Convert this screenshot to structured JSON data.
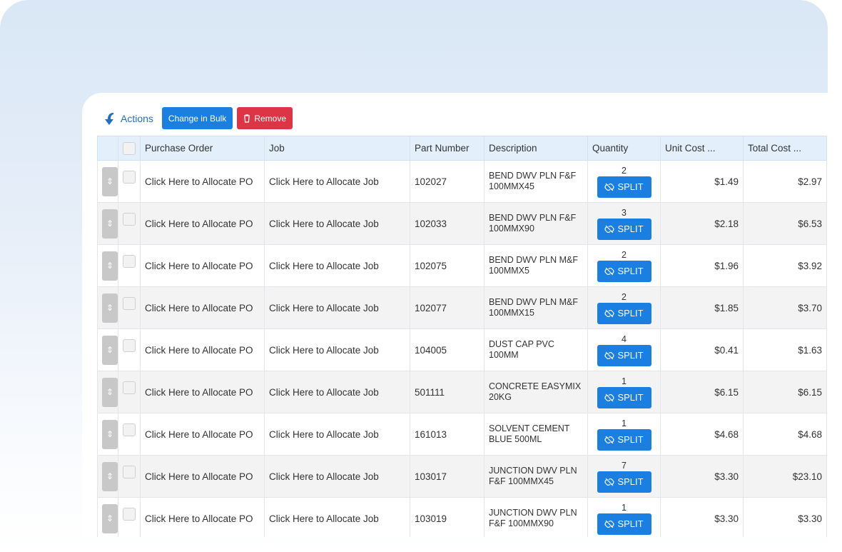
{
  "toolbar": {
    "actions_label": "Actions",
    "bulk_label": "Change in Bulk",
    "remove_label": "Remove"
  },
  "columns": [
    "Purchase Order",
    "Job",
    "Part Number",
    "Description",
    "Quantity",
    "Unit Cost ...",
    "Total Cost ..."
  ],
  "split_label": "SPLIT",
  "rows": [
    {
      "po": "Click Here to Allocate PO",
      "job": "Click Here to Allocate Job",
      "part": "102027",
      "desc": "BEND DWV PLN F&F 100MMX45",
      "qty": "2",
      "unit": "$1.49",
      "total": "$2.97"
    },
    {
      "po": "Click Here to Allocate PO",
      "job": "Click Here to Allocate Job",
      "part": "102033",
      "desc": "BEND DWV PLN F&F 100MMX90",
      "qty": "3",
      "unit": "$2.18",
      "total": "$6.53"
    },
    {
      "po": "Click Here to Allocate PO",
      "job": "Click Here to Allocate Job",
      "part": "102075",
      "desc": "BEND DWV PLN M&F 100MMX5",
      "qty": "2",
      "unit": "$1.96",
      "total": "$3.92"
    },
    {
      "po": "Click Here to Allocate PO",
      "job": "Click Here to Allocate Job",
      "part": "102077",
      "desc": "BEND DWV PLN M&F 100MMX15",
      "qty": "2",
      "unit": "$1.85",
      "total": "$3.70"
    },
    {
      "po": "Click Here to Allocate PO",
      "job": "Click Here to Allocate Job",
      "part": "104005",
      "desc": "DUST CAP PVC 100MM",
      "qty": "4",
      "unit": "$0.41",
      "total": "$1.63"
    },
    {
      "po": "Click Here to Allocate PO",
      "job": "Click Here to Allocate Job",
      "part": "501111",
      "desc": "CONCRETE EASYMIX 20KG",
      "qty": "1",
      "unit": "$6.15",
      "total": "$6.15"
    },
    {
      "po": "Click Here to Allocate PO",
      "job": "Click Here to Allocate Job",
      "part": "161013",
      "desc": "SOLVENT CEMENT BLUE 500ML",
      "qty": "1",
      "unit": "$4.68",
      "total": "$4.68"
    },
    {
      "po": "Click Here to Allocate PO",
      "job": "Click Here to Allocate Job",
      "part": "103017",
      "desc": "JUNCTION DWV PLN F&F 100MMX45",
      "qty": "7",
      "unit": "$3.30",
      "total": "$23.10"
    },
    {
      "po": "Click Here to Allocate PO",
      "job": "Click Here to Allocate Job",
      "part": "103019",
      "desc": "JUNCTION DWV PLN F&F 100MMX90",
      "qty": "1",
      "unit": "$3.30",
      "total": "$3.30"
    }
  ]
}
